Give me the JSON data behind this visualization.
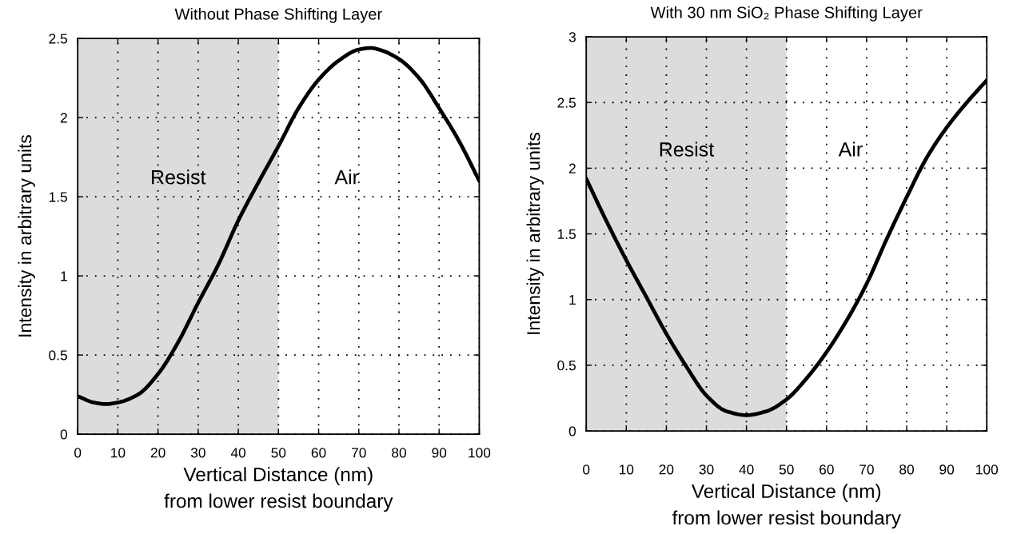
{
  "chart_data": [
    {
      "type": "line",
      "title": "Without Phase Shifting Layer",
      "xlabel": "Vertical Distance (nm)\nfrom lower resist boundary",
      "ylabel": "Intensity in arbitrary units",
      "x": [
        0,
        4,
        7,
        10,
        15,
        20,
        25,
        30,
        35,
        40,
        45,
        50,
        55,
        60,
        65,
        70,
        73,
        75,
        80,
        85,
        90,
        95,
        100
      ],
      "series": [
        {
          "color": "#000000",
          "values": [
            0.24,
            0.2,
            0.19,
            0.2,
            0.25,
            0.38,
            0.58,
            0.83,
            1.07,
            1.35,
            1.59,
            1.82,
            2.06,
            2.24,
            2.36,
            2.43,
            2.44,
            2.43,
            2.37,
            2.25,
            2.06,
            1.85,
            1.6
          ]
        }
      ],
      "xlim": [
        0,
        100
      ],
      "xticks": [
        0,
        10,
        20,
        30,
        40,
        50,
        60,
        70,
        80,
        90,
        100
      ],
      "ylim": [
        0,
        2.5
      ],
      "yticks": [
        0,
        0.5,
        1,
        1.5,
        2,
        2.5
      ],
      "bands": [
        {
          "axis": "x",
          "from": 0,
          "to": 50,
          "label": "Resist",
          "color": "#dcdcdc"
        }
      ],
      "annotations": [
        "Air"
      ],
      "grid": true,
      "marker": "none",
      "line_style": "solid"
    },
    {
      "type": "line",
      "title": "With 30 nm SiO₂ Phase Shifting Layer",
      "xlabel": "Vertical Distance (nm)\nfrom lower resist boundary",
      "ylabel": "Intensity in arbitrary units",
      "x": [
        0,
        5,
        10,
        15,
        20,
        25,
        30,
        35,
        40,
        45,
        50,
        55,
        60,
        65,
        70,
        75,
        80,
        85,
        90,
        95,
        100
      ],
      "series": [
        {
          "color": "#000000",
          "values": [
            1.92,
            1.6,
            1.3,
            1.02,
            0.74,
            0.49,
            0.27,
            0.15,
            0.12,
            0.15,
            0.24,
            0.4,
            0.6,
            0.84,
            1.12,
            1.46,
            1.78,
            2.08,
            2.31,
            2.5,
            2.67
          ]
        }
      ],
      "xlim": [
        0,
        100
      ],
      "xticks": [
        0,
        10,
        20,
        30,
        40,
        50,
        60,
        70,
        80,
        90,
        100
      ],
      "ylim": [
        0,
        3
      ],
      "yticks": [
        0,
        0.5,
        1,
        1.5,
        2,
        2.5,
        3
      ],
      "bands": [
        {
          "axis": "x",
          "from": 0,
          "to": 50,
          "label": "Resist",
          "color": "#dcdcdc"
        }
      ],
      "annotations": [
        "Air"
      ],
      "grid": true,
      "marker": "none",
      "line_style": "solid"
    }
  ]
}
